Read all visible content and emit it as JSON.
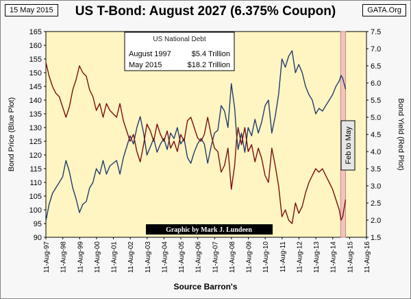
{
  "header": {
    "date": "15 May 2015",
    "title": "US T-Bond: August 2027 (6.375% Coupon)",
    "site": "GATA.Org"
  },
  "footer": {
    "source": "Source Barron's"
  },
  "debt_box": {
    "title": "US National Debt",
    "rows": [
      {
        "label": "August 1997",
        "value": "$5.4 Trillion"
      },
      {
        "label": "May 2015",
        "value": "$18.2 Trillion"
      }
    ]
  },
  "annotations": {
    "credit": "Graphic by Mark J. Lundeen",
    "highlight": "Feb to May"
  },
  "colors": {
    "plot_bg": "#fff5c2",
    "price": "#1f3a6e",
    "yield": "#7a0d0d",
    "highlight_fill": "#f1c5bf",
    "highlight_border": "#c9857c"
  },
  "chart_data": {
    "type": "line",
    "xlabel": "",
    "ylabel_left": "Bond Price   (Blue Plot)",
    "ylabel_right": "Bond Yield   (Red Plot)",
    "ylim_left": [
      90,
      165
    ],
    "ylim_right": [
      1.5,
      7.5
    ],
    "yticks_left": [
      "90",
      "95",
      "100",
      "105",
      "110",
      "115",
      "120",
      "125",
      "130",
      "135",
      "140",
      "145",
      "150",
      "155",
      "160",
      "165"
    ],
    "yticks_right": [
      "1.5",
      "2.0",
      "2.5",
      "3.0",
      "3.5",
      "4.0",
      "4.5",
      "5.0",
      "5.5",
      "6.0",
      "6.5",
      "7.0",
      "7.5"
    ],
    "xlim": [
      1997.61,
      2016.61
    ],
    "xticks": [
      {
        "x": 1997.61,
        "label": "11-Aug-97"
      },
      {
        "x": 1998.61,
        "label": "11-Aug-98"
      },
      {
        "x": 1999.61,
        "label": "11-Aug-99"
      },
      {
        "x": 2000.61,
        "label": "11-Aug-00"
      },
      {
        "x": 2001.61,
        "label": "11-Aug-01"
      },
      {
        "x": 2002.61,
        "label": "11-Aug-02"
      },
      {
        "x": 2003.61,
        "label": "11-Aug-03"
      },
      {
        "x": 2004.61,
        "label": "11-Aug-04"
      },
      {
        "x": 2005.61,
        "label": "11-Aug-05"
      },
      {
        "x": 2006.61,
        "label": "11-Aug-06"
      },
      {
        "x": 2007.61,
        "label": "11-Aug-07"
      },
      {
        "x": 2008.61,
        "label": "11-Aug-08"
      },
      {
        "x": 2009.61,
        "label": "11-Aug-09"
      },
      {
        "x": 2010.61,
        "label": "11-Aug-10"
      },
      {
        "x": 2011.61,
        "label": "11-Aug-11"
      },
      {
        "x": 2012.61,
        "label": "11-Aug-12"
      },
      {
        "x": 2013.61,
        "label": "11-Aug-13"
      },
      {
        "x": 2014.61,
        "label": "11-Aug-14"
      },
      {
        "x": 2015.61,
        "label": "11-Aug-15"
      },
      {
        "x": 2016.61,
        "label": "11-Aug-16"
      }
    ],
    "grid": false,
    "highlight_range": [
      2015.08,
      2015.37
    ],
    "series": [
      {
        "axis": "left",
        "x": [
          1997.61,
          1997.8,
          1998.0,
          1998.2,
          1998.4,
          1998.6,
          1998.8,
          1999.0,
          1999.2,
          1999.4,
          1999.6,
          1999.8,
          2000.0,
          2000.2,
          2000.4,
          2000.6,
          2000.8,
          2001.0,
          2001.2,
          2001.4,
          2001.6,
          2001.8,
          2002.0,
          2002.2,
          2002.4,
          2002.6,
          2002.8,
          2003.0,
          2003.2,
          2003.4,
          2003.6,
          2003.8,
          2004.0,
          2004.2,
          2004.4,
          2004.6,
          2004.8,
          2005.0,
          2005.2,
          2005.4,
          2005.6,
          2005.8,
          2006.0,
          2006.2,
          2006.4,
          2006.6,
          2006.8,
          2007.0,
          2007.2,
          2007.4,
          2007.6,
          2007.8,
          2008.0,
          2008.2,
          2008.4,
          2008.6,
          2008.8,
          2008.9,
          2009.0,
          2009.2,
          2009.4,
          2009.6,
          2009.8,
          2010.0,
          2010.2,
          2010.4,
          2010.6,
          2010.8,
          2011.0,
          2011.2,
          2011.4,
          2011.6,
          2011.8,
          2012.0,
          2012.2,
          2012.4,
          2012.6,
          2012.8,
          2013.0,
          2013.2,
          2013.4,
          2013.6,
          2013.8,
          2014.0,
          2014.2,
          2014.4,
          2014.6,
          2014.8,
          2015.0,
          2015.1,
          2015.2,
          2015.37
        ],
        "y": [
          96,
          102,
          106,
          108,
          110,
          112,
          118,
          114,
          108,
          104,
          99,
          102,
          103,
          108,
          110,
          115,
          113,
          118,
          113,
          116,
          117,
          118,
          113,
          119,
          123,
          127,
          124,
          130,
          134,
          128,
          120,
          123,
          126,
          121,
          124,
          126,
          122,
          128,
          126,
          130,
          124,
          126,
          119,
          117,
          121,
          124,
          126,
          124,
          117,
          123,
          128,
          129,
          138,
          136,
          130,
          146,
          137,
          128,
          122,
          128,
          121,
          130,
          127,
          133,
          128,
          132,
          138,
          140,
          128,
          134,
          142,
          155,
          152,
          156,
          158,
          150,
          153,
          150,
          145,
          142,
          140,
          135,
          137,
          136,
          138,
          140,
          142,
          145,
          147,
          149,
          148,
          144
        ]
      },
      {
        "axis": "right",
        "x": [
          1997.61,
          1997.8,
          1998.0,
          1998.2,
          1998.4,
          1998.6,
          1998.8,
          1999.0,
          1999.2,
          1999.4,
          1999.6,
          1999.8,
          2000.0,
          2000.2,
          2000.4,
          2000.6,
          2000.8,
          2001.0,
          2001.2,
          2001.4,
          2001.6,
          2001.8,
          2002.0,
          2002.2,
          2002.4,
          2002.6,
          2002.8,
          2003.0,
          2003.2,
          2003.4,
          2003.6,
          2003.8,
          2004.0,
          2004.2,
          2004.4,
          2004.6,
          2004.8,
          2005.0,
          2005.2,
          2005.4,
          2005.6,
          2005.8,
          2006.0,
          2006.2,
          2006.4,
          2006.6,
          2006.8,
          2007.0,
          2007.2,
          2007.4,
          2007.6,
          2007.8,
          2008.0,
          2008.2,
          2008.4,
          2008.6,
          2008.8,
          2008.9,
          2009.0,
          2009.2,
          2009.4,
          2009.6,
          2009.8,
          2010.0,
          2010.2,
          2010.4,
          2010.6,
          2010.8,
          2011.0,
          2011.2,
          2011.4,
          2011.6,
          2011.8,
          2012.0,
          2012.2,
          2012.4,
          2012.6,
          2012.8,
          2013.0,
          2013.2,
          2013.4,
          2013.6,
          2013.8,
          2014.0,
          2014.2,
          2014.4,
          2014.6,
          2014.8,
          2015.0,
          2015.1,
          2015.2,
          2015.37
        ],
        "y": [
          6.6,
          6.2,
          5.9,
          5.7,
          5.6,
          5.3,
          5.0,
          5.3,
          5.8,
          6.1,
          6.5,
          6.3,
          6.2,
          5.8,
          5.6,
          5.2,
          5.4,
          5.0,
          5.4,
          5.2,
          5.1,
          5.0,
          5.4,
          4.9,
          4.6,
          4.3,
          4.5,
          4.0,
          3.7,
          4.2,
          4.8,
          4.6,
          4.3,
          4.8,
          4.5,
          4.3,
          4.6,
          4.1,
          4.3,
          4.0,
          4.5,
          4.3,
          4.9,
          5.0,
          4.7,
          4.4,
          4.3,
          4.5,
          5.0,
          4.5,
          4.1,
          4.0,
          3.4,
          3.6,
          4.1,
          2.9,
          3.6,
          4.3,
          4.7,
          4.2,
          4.7,
          4.0,
          4.2,
          3.7,
          4.1,
          3.8,
          3.3,
          3.1,
          4.1,
          3.6,
          3.0,
          2.1,
          2.3,
          2.0,
          1.9,
          2.5,
          2.2,
          2.4,
          2.8,
          3.1,
          3.3,
          3.5,
          3.4,
          3.5,
          3.3,
          3.1,
          2.9,
          2.6,
          2.3,
          2.0,
          2.1,
          2.6
        ]
      }
    ]
  }
}
